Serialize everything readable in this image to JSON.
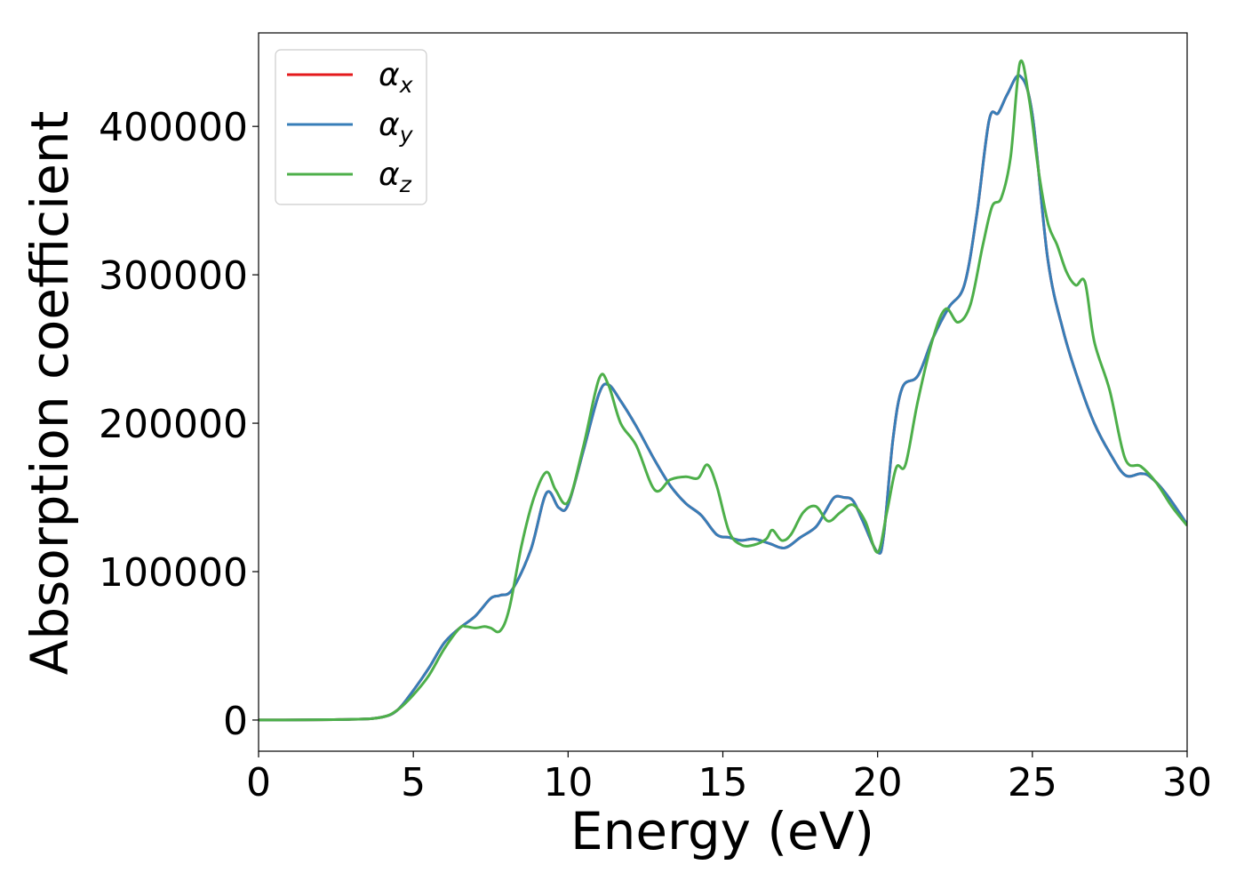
{
  "chart_data": {
    "type": "line",
    "title": "",
    "xlabel": "Energy (eV)",
    "ylabel": "Absorption coefficient",
    "xlim": [
      0,
      30
    ],
    "ylim": [
      -21000,
      463000
    ],
    "xticks": [
      0,
      5,
      10,
      15,
      20,
      25,
      30
    ],
    "xtick_labels": [
      "0",
      "5",
      "10",
      "15",
      "20",
      "25",
      "30"
    ],
    "yticks": [
      0,
      100000,
      200000,
      300000,
      400000
    ],
    "ytick_labels": [
      "0",
      "100000",
      "200000",
      "300000",
      "400000"
    ],
    "grid": false,
    "legend": {
      "placement": "top-left"
    },
    "series": [
      {
        "name": "α_x",
        "legend_base": "α",
        "legend_sub": "x",
        "color": "#e41a1c",
        "x": [
          0,
          3,
          4,
          4.5,
          5,
          5.5,
          6,
          6.5,
          7,
          7.5,
          7.8,
          8.2,
          8.8,
          9.3,
          9.7,
          10,
          10.5,
          11,
          11.3,
          11.7,
          12.2,
          12.8,
          13.3,
          13.8,
          14.3,
          14.8,
          15.2,
          15.6,
          16,
          16.5,
          17,
          17.5,
          18,
          18.3,
          18.6,
          18.9,
          19.2,
          19.5,
          20,
          20.2,
          20.5,
          20.8,
          21.3,
          21.8,
          22.3,
          22.8,
          23.2,
          23.6,
          23.9,
          24.2,
          24.6,
          25,
          25.5,
          26,
          26.5,
          27,
          27.5,
          28,
          28.5,
          28.8,
          29.3,
          30
        ],
        "y": [
          0,
          500,
          2000,
          7000,
          20000,
          35000,
          52000,
          62000,
          70000,
          82000,
          84000,
          88000,
          115000,
          153000,
          143000,
          145000,
          182000,
          220000,
          226000,
          215000,
          198000,
          175000,
          158000,
          146000,
          138000,
          125000,
          123000,
          121000,
          122000,
          119000,
          116000,
          123000,
          130000,
          140000,
          150000,
          150000,
          148000,
          135000,
          113000,
          125000,
          190000,
          224000,
          232000,
          258000,
          278000,
          293000,
          340000,
          404000,
          409000,
          422000,
          434000,
          408000,
          310000,
          262000,
          228000,
          200000,
          180000,
          165000,
          166000,
          164000,
          153000,
          132000
        ]
      },
      {
        "name": "α_y",
        "legend_base": "α",
        "legend_sub": "y",
        "color": "#377eb8",
        "x": [
          0,
          3,
          4,
          4.5,
          5,
          5.5,
          6,
          6.5,
          7,
          7.5,
          7.8,
          8.2,
          8.8,
          9.3,
          9.7,
          10,
          10.5,
          11,
          11.3,
          11.7,
          12.2,
          12.8,
          13.3,
          13.8,
          14.3,
          14.8,
          15.2,
          15.6,
          16,
          16.5,
          17,
          17.5,
          18,
          18.3,
          18.6,
          18.9,
          19.2,
          19.5,
          20,
          20.2,
          20.5,
          20.8,
          21.3,
          21.8,
          22.3,
          22.8,
          23.2,
          23.6,
          23.9,
          24.2,
          24.6,
          25,
          25.5,
          26,
          26.5,
          27,
          27.5,
          28,
          28.5,
          28.8,
          29.3,
          30
        ],
        "y": [
          0,
          500,
          2000,
          7000,
          20000,
          35000,
          52000,
          62000,
          70000,
          82000,
          84000,
          88000,
          115000,
          153000,
          143000,
          145000,
          182000,
          220000,
          226000,
          215000,
          198000,
          175000,
          158000,
          146000,
          138000,
          125000,
          123000,
          121000,
          122000,
          119000,
          116000,
          123000,
          130000,
          140000,
          150000,
          150000,
          148000,
          135000,
          113000,
          125000,
          190000,
          224000,
          232000,
          258000,
          278000,
          293000,
          340000,
          404000,
          409000,
          422000,
          434000,
          408000,
          310000,
          262000,
          228000,
          200000,
          180000,
          165000,
          166000,
          164000,
          153000,
          132000
        ]
      },
      {
        "name": "α_z",
        "legend_base": "α",
        "legend_sub": "z",
        "color": "#4daf4a",
        "x": [
          0,
          3,
          4,
          4.5,
          5,
          5.5,
          6,
          6.5,
          6.7,
          7,
          7.3,
          7.5,
          7.8,
          8.1,
          8.5,
          8.9,
          9.3,
          9.6,
          10,
          10.5,
          11,
          11.3,
          11.7,
          12.2,
          12.8,
          13.3,
          13.8,
          14.2,
          14.5,
          14.8,
          15.2,
          15.6,
          16,
          16.4,
          16.6,
          16.9,
          17.2,
          17.6,
          18,
          18.4,
          18.8,
          19.2,
          19.6,
          20,
          20.3,
          20.6,
          20.9,
          21.3,
          21.8,
          22.2,
          22.6,
          23,
          23.4,
          23.7,
          24,
          24.3,
          24.6,
          24.9,
          25.2,
          25.5,
          25.8,
          26.1,
          26.4,
          26.7,
          27,
          27.5,
          28,
          28.5,
          29,
          29.5,
          30
        ],
        "y": [
          0,
          500,
          2000,
          7000,
          17000,
          30000,
          48000,
          62000,
          63000,
          62000,
          63000,
          62000,
          60000,
          75000,
          118000,
          150000,
          167000,
          155000,
          147000,
          185000,
          230000,
          226000,
          200000,
          185000,
          155000,
          162000,
          164000,
          163000,
          172000,
          158000,
          127000,
          118000,
          118000,
          122000,
          128000,
          121000,
          125000,
          140000,
          144000,
          134000,
          140000,
          145000,
          134000,
          113000,
          140000,
          170000,
          172000,
          215000,
          258000,
          277000,
          268000,
          280000,
          320000,
          346000,
          352000,
          380000,
          443000,
          418000,
          370000,
          335000,
          320000,
          302000,
          293000,
          295000,
          255000,
          222000,
          176000,
          171000,
          160000,
          144000,
          131000
        ]
      }
    ]
  }
}
